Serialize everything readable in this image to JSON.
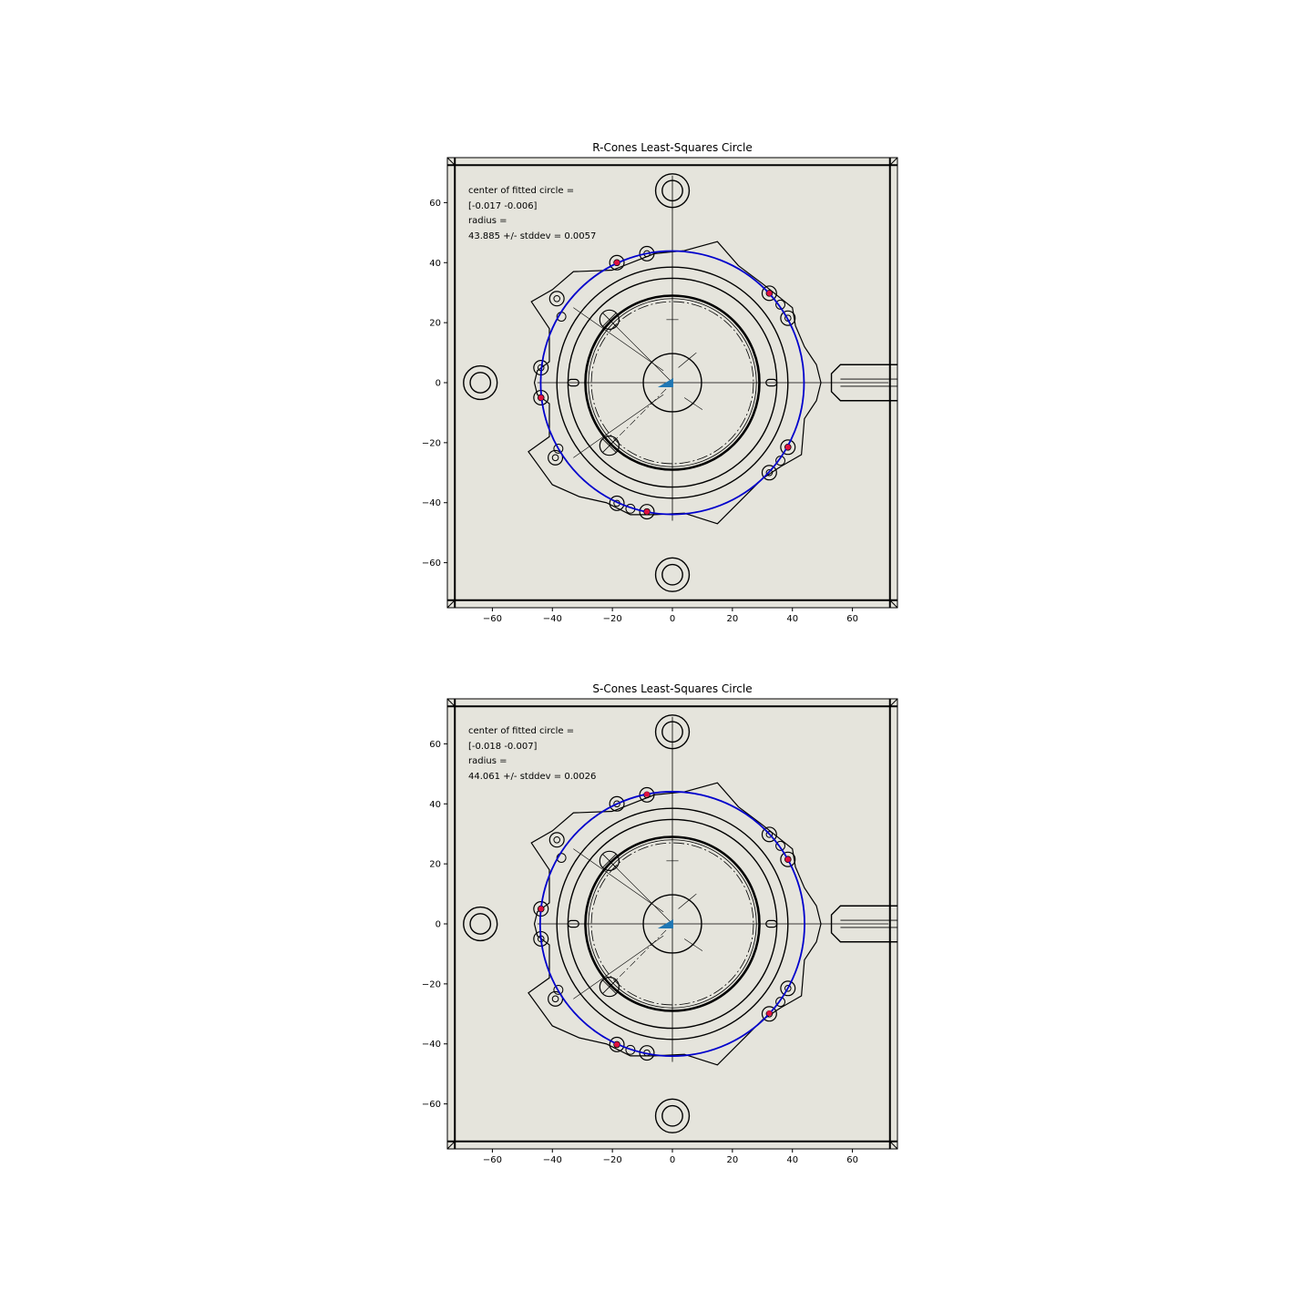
{
  "chart_data": [
    {
      "type": "scatter",
      "title": "R-Cones Least-Squares Circle",
      "xlabel": "",
      "ylabel": "",
      "xlim": [
        -75,
        75
      ],
      "ylim": [
        -75,
        75
      ],
      "xticks": [
        -60,
        -40,
        -20,
        0,
        20,
        40,
        60
      ],
      "yticks": [
        -60,
        -40,
        -20,
        0,
        20,
        40,
        60
      ],
      "xtick_labels": [
        "−60",
        "−40",
        "−20",
        "0",
        "20",
        "40",
        "60"
      ],
      "ytick_labels": [
        "−60",
        "−40",
        "−20",
        "0",
        "20",
        "40",
        "60"
      ],
      "annotation": [
        "center of fitted circle =",
        "[-0.017 -0.006]",
        "radius =",
        "43.885 +/- stddev = 0.0057"
      ],
      "fitted_circle": {
        "center": [
          -0.017,
          -0.006
        ],
        "radius": 43.885
      },
      "cone_points": [
        {
          "x": -18.5,
          "y": 40.0
        },
        {
          "x": 32.3,
          "y": 29.8
        },
        {
          "x": 38.5,
          "y": -21.5
        },
        {
          "x": -8.5,
          "y": -43.0
        },
        {
          "x": -43.8,
          "y": -5.0
        }
      ],
      "background_image": "mechanical drawing of cone mount plate",
      "colors": {
        "circle": "#0000cc",
        "points": "#e0113f",
        "arrow": "#1f77b4",
        "background": "#e5e4dc"
      }
    },
    {
      "type": "scatter",
      "title": "S-Cones Least-Squares Circle",
      "xlabel": "",
      "ylabel": "",
      "xlim": [
        -75,
        75
      ],
      "ylim": [
        -75,
        75
      ],
      "xticks": [
        -60,
        -40,
        -20,
        0,
        20,
        40,
        60
      ],
      "yticks": [
        -60,
        -40,
        -20,
        0,
        20,
        40,
        60
      ],
      "xtick_labels": [
        "−60",
        "−40",
        "−20",
        "0",
        "20",
        "40",
        "60"
      ],
      "ytick_labels": [
        "−60",
        "−40",
        "−20",
        "0",
        "20",
        "40",
        "60"
      ],
      "annotation": [
        "center of fitted circle =",
        "[-0.018 -0.007]",
        "radius =",
        "44.061 +/- stddev = 0.0026"
      ],
      "fitted_circle": {
        "center": [
          -0.018,
          -0.007
        ],
        "radius": 44.061
      },
      "cone_points": [
        {
          "x": -8.5,
          "y": 43.2
        },
        {
          "x": 38.5,
          "y": 21.5
        },
        {
          "x": 32.3,
          "y": -29.8
        },
        {
          "x": -18.5,
          "y": -40.2
        },
        {
          "x": -43.8,
          "y": 5.0
        }
      ],
      "background_image": "mechanical drawing of cone mount plate",
      "colors": {
        "circle": "#0000cc",
        "points": "#e0113f",
        "arrow": "#1f77b4",
        "background": "#e5e4dc"
      }
    }
  ]
}
